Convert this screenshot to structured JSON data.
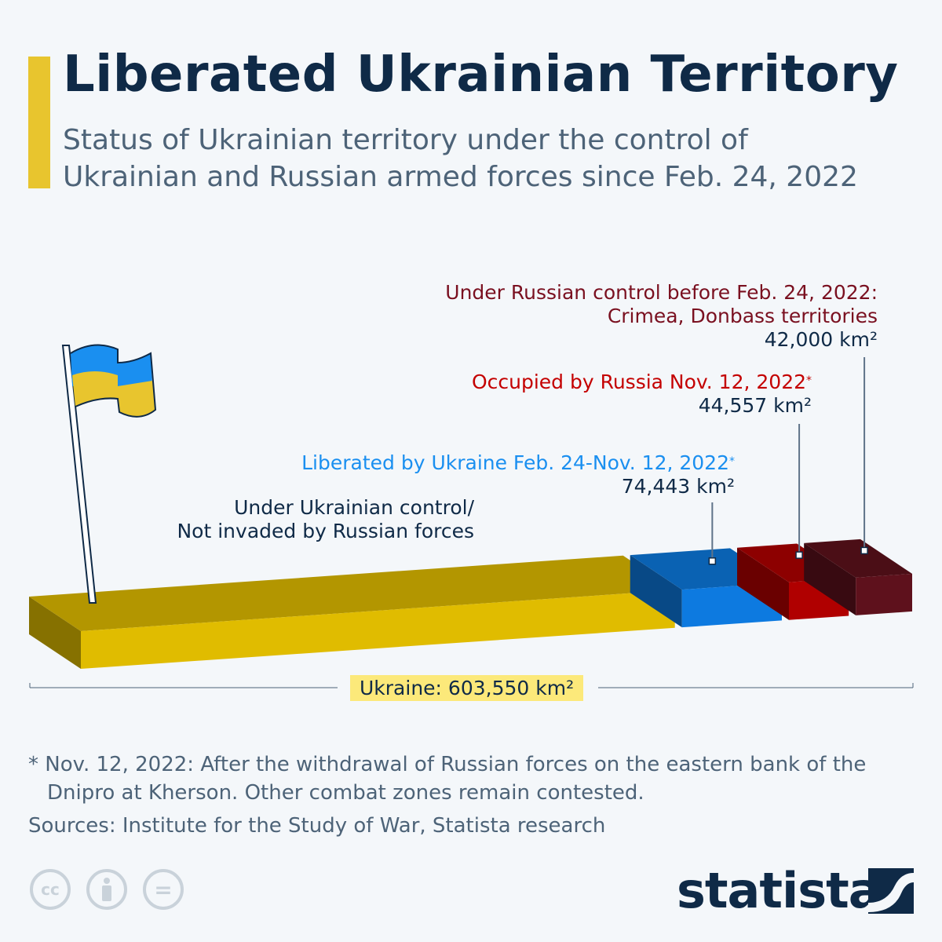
{
  "header": {
    "title": "Liberated Ukrainian Territory",
    "subtitle_line1": "Status of Ukrainian territory under the control of",
    "subtitle_line2": "Ukrainian and Russian armed forces since Feb. 24, 2022"
  },
  "chart_data": {
    "type": "bar",
    "orientation": "stacked-horizontal-3d",
    "unit": "km²",
    "total_label": "Ukraine: 603,550 km²",
    "total": 603550,
    "segments": [
      {
        "name": "Under Ukrainian control/ Not invaded by Russian forces",
        "label_line1": "Under Ukrainian control/",
        "label_line2": "Not invaded by Russian forces",
        "value": 442550,
        "color": "#e0bc00",
        "value_label": ""
      },
      {
        "name": "Liberated by Ukraine Feb. 24-Nov. 12, 2022*",
        "label_line1": "Liberated by Ukraine Feb. 24-Nov. 12, 2022",
        "value": 74443,
        "value_label": "74,443 km²",
        "color": "#0d7ae0",
        "label_color": "#1a8ff0"
      },
      {
        "name": "Occupied by Russia Nov. 12, 2022*",
        "label_line1": "Occupied by Russia Nov. 12, 2022",
        "value": 44557,
        "value_label": "44,557 km²",
        "color": "#b00000",
        "label_color": "#c40000"
      },
      {
        "name": "Under Russian control before Feb. 24, 2022: Crimea, Donbass territories",
        "label_line1": "Under Russian control before Feb. 24, 2022:",
        "label_line2": "Crimea, Donbass territories",
        "value": 42000,
        "value_label": "42,000 km²",
        "color": "#5e111c",
        "label_color": "#7a1020"
      }
    ]
  },
  "footnote_line1": "* Nov. 12, 2022: After the withdrawal of Russian forces on the eastern bank of the",
  "footnote_line2": "Dnipro at Kherson. Other combat zones remain contested.",
  "sources": "Sources: Institute for the Study of War, Statista research",
  "license_icons": [
    "cc-icon",
    "attribution-icon",
    "no-derivatives-icon"
  ],
  "license_text": {
    "cc": "cc",
    "nd": "="
  },
  "logo": "statista"
}
